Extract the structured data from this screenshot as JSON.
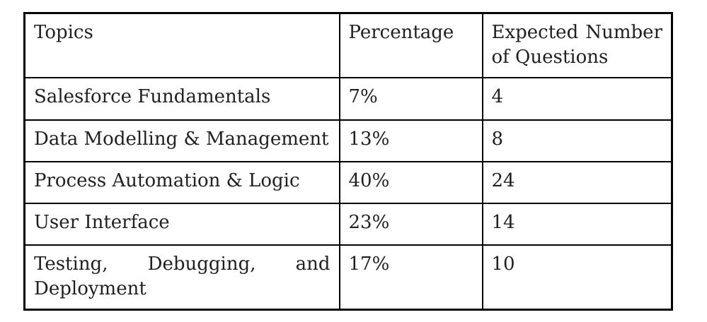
{
  "table": {
    "headers": [
      "Topics",
      "Percentage",
      "Expected Number of Questions"
    ],
    "rows": [
      {
        "topic": "Salesforce Fundamentals",
        "percentage": "7%",
        "expected_questions": "4"
      },
      {
        "topic": "Data Modelling & Management",
        "percentage": "13%",
        "expected_questions": "8"
      },
      {
        "topic": "Process Automation & Logic",
        "percentage": "40%",
        "expected_questions": "24"
      },
      {
        "topic": "User Interface",
        "percentage": "23%",
        "expected_questions": "14"
      },
      {
        "topic": "Testing, Debugging, and Deployment",
        "percentage": "17%",
        "expected_questions": "10"
      }
    ]
  },
  "colors": {
    "border": "#000000",
    "text": "#202122",
    "background": "#ffffff"
  }
}
